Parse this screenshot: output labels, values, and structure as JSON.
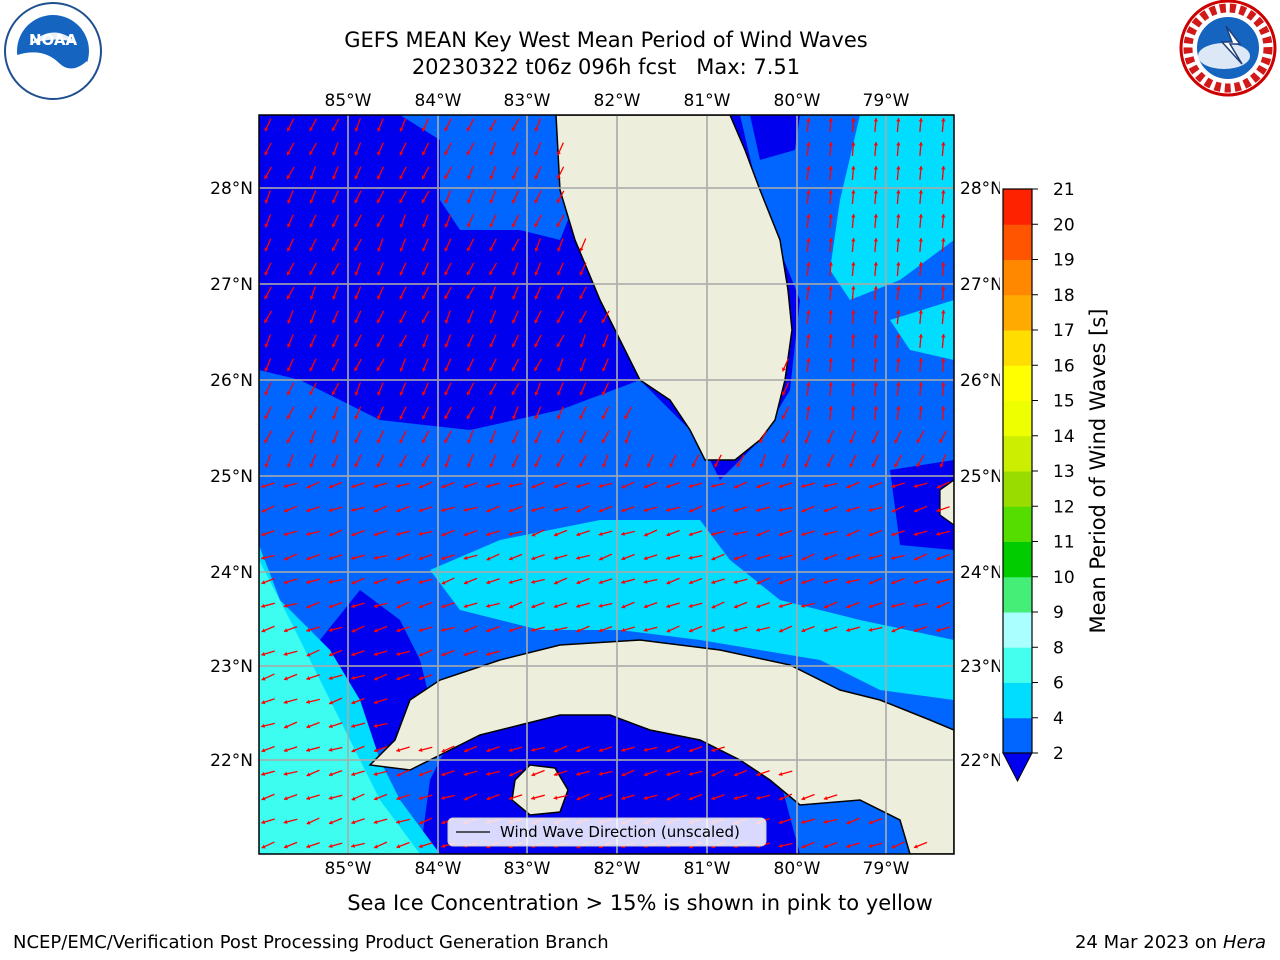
{
  "header": {
    "title_line1": "GEFS MEAN Key West Mean Period of Wind Waves",
    "title_line2": "20230322 t06z 096h fcst   Max: 7.51"
  },
  "map": {
    "lon_labels": [
      "85°W",
      "84°W",
      "83°W",
      "82°W",
      "81°W",
      "80°W",
      "79°W"
    ],
    "lat_labels": [
      "28°N",
      "27°N",
      "26°N",
      "25°N",
      "24°N",
      "23°N",
      "22°N"
    ],
    "legend_label": "Wind Wave Direction (unscaled)",
    "arrow_color": "#ff0000",
    "land_color": "#eeeedd"
  },
  "colorbar": {
    "label": "Mean Period of Wind Waves [s]",
    "ticks": [
      "2",
      "4",
      "6",
      "8",
      "9",
      "10",
      "11",
      "12",
      "13",
      "14",
      "15",
      "16",
      "17",
      "18",
      "19",
      "20",
      "21"
    ],
    "colors": [
      "#0066ff",
      "#00ddff",
      "#44ffee",
      "#aaffff",
      "#44ee77",
      "#00cc00",
      "#55dd00",
      "#99dd00",
      "#ccee00",
      "#eeff00",
      "#ffff00",
      "#ffdd00",
      "#ffaa00",
      "#ff8800",
      "#ff5500",
      "#ff2200"
    ],
    "extend_color": "#0000ee"
  },
  "period_colors": {
    "lt2": "#0000ee",
    "p2_4": "#0066ff",
    "p4_6": "#00ddff",
    "p6_8": "#44ffee"
  },
  "subtitle": "Sea Ice Concentration > 15% is shown in pink to yellow",
  "footer": {
    "credit": "NCEP/EMC/Verification Post Processing Product Generation Branch",
    "date": "24 Mar 2023 on",
    "host": "Hera"
  },
  "logos": {
    "noaa_text": "NOAA",
    "nws_text": "NATIONAL WEATHER SERVICE"
  }
}
